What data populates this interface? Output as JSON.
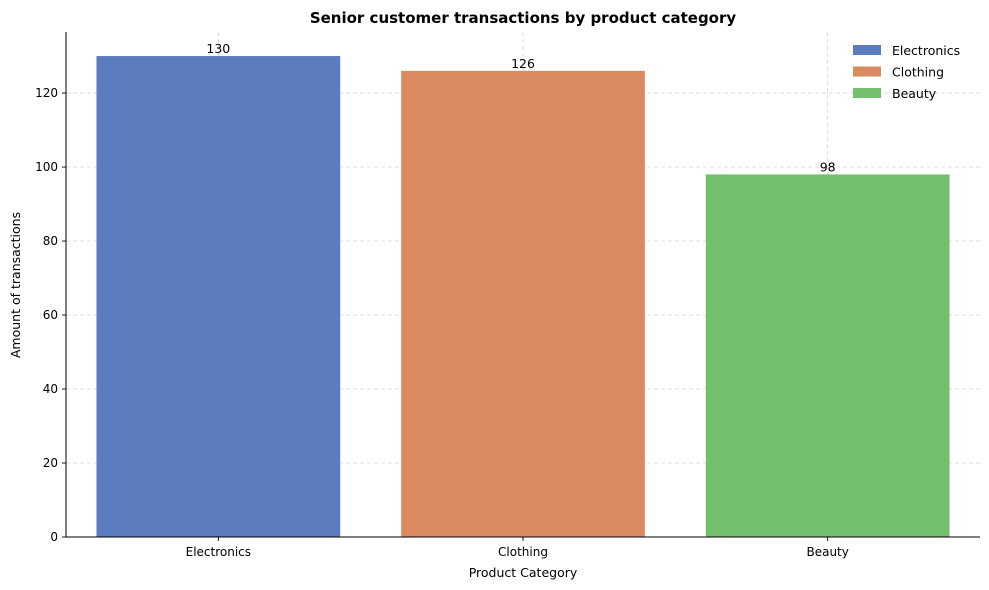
{
  "chart_data": {
    "type": "bar",
    "title": "Senior customer transactions by product category",
    "xlabel": "Product Category",
    "ylabel": "Amount of transactions",
    "categories": [
      "Electronics",
      "Clothing",
      "Beauty"
    ],
    "values": [
      130,
      126,
      98
    ],
    "colors": [
      "#5b7cbf",
      "#d98b5f",
      "#74bf6e"
    ],
    "ylim": [
      0,
      136.5
    ],
    "yticks": [
      0,
      20,
      40,
      60,
      80,
      100,
      120
    ],
    "grid": true,
    "legend": {
      "placement": "top-right",
      "entries": [
        "Electronics",
        "Clothing",
        "Beauty"
      ]
    }
  }
}
